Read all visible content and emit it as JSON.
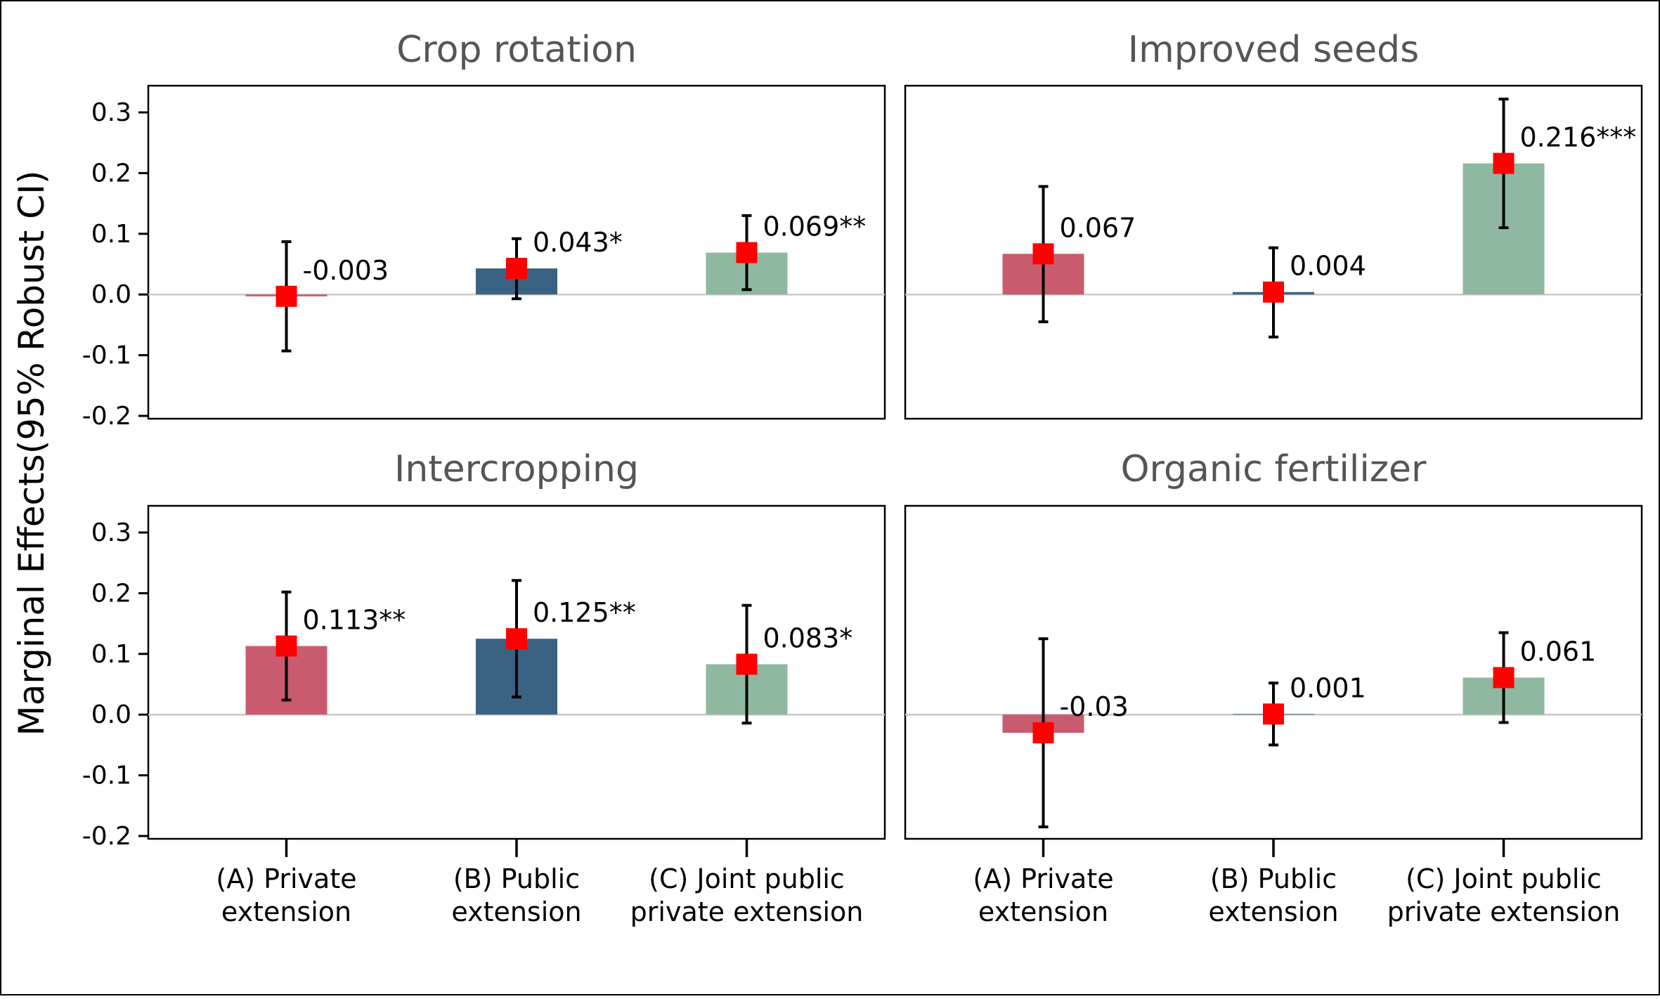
{
  "chart_data": {
    "type": "bar",
    "ylabel": "Marginal Effects(95% Robust CI)",
    "ylim": [
      -0.2,
      0.3
    ],
    "yticks": [
      "0.3",
      "0.2",
      "0.1",
      "0.0",
      "-0.1",
      "-0.2"
    ],
    "ytick_values": [
      0.3,
      0.2,
      0.1,
      0.0,
      -0.1,
      -0.2
    ],
    "categories": [
      [
        "(A) Private",
        "extension"
      ],
      [
        "(B) Public",
        "extension"
      ],
      [
        "(C) Joint public",
        "private extension"
      ]
    ],
    "colors": [
      "#c95b6f",
      "#3a6283",
      "#8fb8a0"
    ],
    "marker_color": "#ff0000",
    "panels": [
      {
        "title": "Crop rotation",
        "values": [
          -0.003,
          0.043,
          0.069
        ],
        "ci_low": [
          -0.093,
          -0.007,
          0.008
        ],
        "ci_high": [
          0.087,
          0.092,
          0.13
        ],
        "labels": [
          "-0.003",
          "0.043*",
          "0.069**"
        ]
      },
      {
        "title": "Improved seeds",
        "values": [
          0.067,
          0.004,
          0.216
        ],
        "ci_low": [
          -0.045,
          -0.07,
          0.11
        ],
        "ci_high": [
          0.178,
          0.077,
          0.322
        ],
        "labels": [
          "0.067",
          "0.004",
          "0.216***"
        ]
      },
      {
        "title": "Intercropping",
        "values": [
          0.113,
          0.125,
          0.083
        ],
        "ci_low": [
          0.024,
          0.029,
          -0.014
        ],
        "ci_high": [
          0.202,
          0.221,
          0.18
        ],
        "labels": [
          "0.113**",
          "0.125**",
          "0.083*"
        ]
      },
      {
        "title": "Organic fertilizer",
        "values": [
          -0.03,
          0.001,
          0.061
        ],
        "ci_low": [
          -0.185,
          -0.05,
          -0.013
        ],
        "ci_high": [
          0.125,
          0.052,
          0.135
        ],
        "labels": [
          "-0.03",
          "0.001",
          "0.061"
        ]
      }
    ]
  }
}
